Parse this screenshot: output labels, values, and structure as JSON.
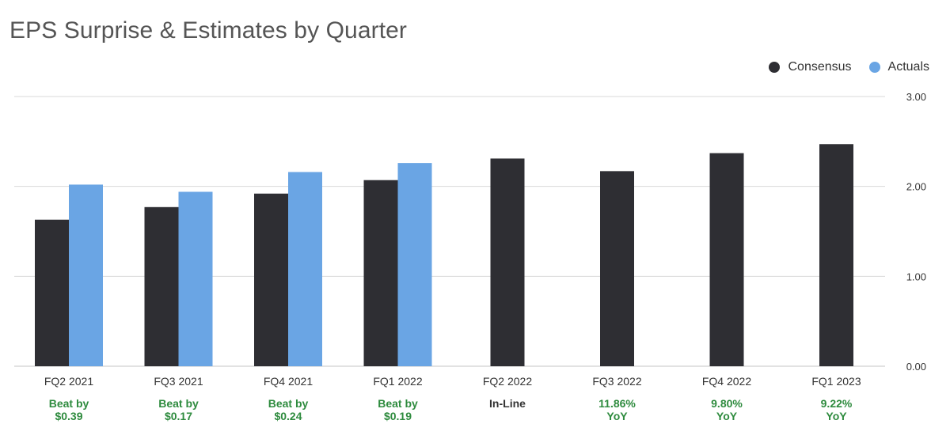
{
  "chart_data": {
    "type": "bar",
    "title": "EPS Surprise & Estimates by Quarter",
    "categories": [
      "FQ2 2021",
      "FQ3 2021",
      "FQ4 2021",
      "FQ1 2022",
      "FQ2 2022",
      "FQ3 2022",
      "FQ4 2022",
      "FQ1 2023"
    ],
    "series": [
      {
        "name": "Consensus",
        "color": "#2e2e33",
        "values": [
          1.63,
          1.77,
          1.92,
          2.07,
          2.31,
          2.17,
          2.37,
          2.47
        ]
      },
      {
        "name": "Actuals",
        "color": "#6aa5e4",
        "values": [
          2.02,
          1.94,
          2.16,
          2.26,
          null,
          null,
          null,
          null
        ]
      }
    ],
    "ylim": [
      0,
      3
    ],
    "yticks": [
      "0.00",
      "1.00",
      "2.00",
      "3.00"
    ],
    "ytick_values": [
      0,
      1,
      2,
      3
    ],
    "grid": true,
    "legend_position": "top-right",
    "annotations": [
      {
        "lines": [
          "Beat by",
          "$0.39"
        ],
        "color": "#2e8b3e"
      },
      {
        "lines": [
          "Beat by",
          "$0.17"
        ],
        "color": "#2e8b3e"
      },
      {
        "lines": [
          "Beat by",
          "$0.24"
        ],
        "color": "#2e8b3e"
      },
      {
        "lines": [
          "Beat by",
          "$0.19"
        ],
        "color": "#2e8b3e"
      },
      {
        "lines": [
          "In-Line"
        ],
        "color": "#333333"
      },
      {
        "lines": [
          "11.86%",
          "YoY"
        ],
        "color": "#2e8b3e"
      },
      {
        "lines": [
          "9.80%",
          "YoY"
        ],
        "color": "#2e8b3e"
      },
      {
        "lines": [
          "9.22%",
          "YoY"
        ],
        "color": "#2e8b3e"
      }
    ]
  }
}
